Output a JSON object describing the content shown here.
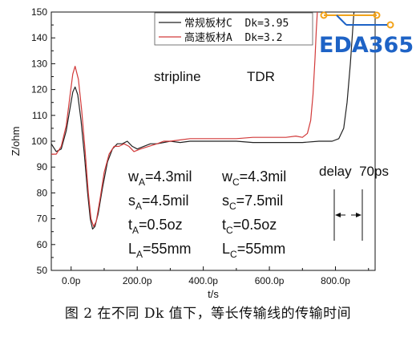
{
  "chart_data": {
    "type": "line",
    "title": "",
    "xlabel": "t/s",
    "ylabel": "Z/ohm",
    "xlim": [
      -60,
      920
    ],
    "ylim": [
      50,
      150
    ],
    "x_ticks": [
      0,
      200,
      400,
      600,
      800
    ],
    "x_tick_labels": [
      "0.0p",
      "200.0p",
      "400.0p",
      "600.0p",
      "800.0p"
    ],
    "y_ticks": [
      50,
      60,
      70,
      80,
      90,
      100,
      110,
      120,
      130,
      140,
      150
    ],
    "y_tick_labels": [
      "50",
      "60",
      "70",
      "80",
      "90",
      "100",
      "110",
      "120",
      "130",
      "140",
      "150"
    ],
    "legend_position": "top-right",
    "grid": false,
    "series": [
      {
        "name": "常规板材C  Dk=3.95",
        "color": "#222222",
        "points": [
          [
            -60,
            99
          ],
          [
            -45,
            96
          ],
          [
            -30,
            97
          ],
          [
            -15,
            104
          ],
          [
            -3,
            113
          ],
          [
            5,
            119
          ],
          [
            12,
            121
          ],
          [
            20,
            118
          ],
          [
            30,
            108
          ],
          [
            40,
            95
          ],
          [
            50,
            80
          ],
          [
            58,
            70
          ],
          [
            65,
            66
          ],
          [
            72,
            67
          ],
          [
            82,
            72
          ],
          [
            95,
            82
          ],
          [
            110,
            92
          ],
          [
            125,
            97
          ],
          [
            140,
            99
          ],
          [
            155,
            99
          ],
          [
            170,
            100
          ],
          [
            185,
            98
          ],
          [
            200,
            97
          ],
          [
            220,
            98
          ],
          [
            240,
            99
          ],
          [
            260,
            99
          ],
          [
            280,
            99.5
          ],
          [
            300,
            100
          ],
          [
            330,
            99.5
          ],
          [
            360,
            100
          ],
          [
            400,
            100
          ],
          [
            450,
            100
          ],
          [
            500,
            100
          ],
          [
            550,
            99.5
          ],
          [
            600,
            99.5
          ],
          [
            650,
            99.5
          ],
          [
            700,
            99.5
          ],
          [
            750,
            100
          ],
          [
            790,
            100
          ],
          [
            810,
            101
          ],
          [
            825,
            105
          ],
          [
            835,
            115
          ],
          [
            845,
            130
          ],
          [
            852,
            143
          ],
          [
            856,
            150
          ]
        ]
      },
      {
        "name": "高速板材A  Dk=3.2",
        "color": "#d23a3a",
        "points": [
          [
            -60,
            95
          ],
          [
            -45,
            95
          ],
          [
            -30,
            98
          ],
          [
            -15,
            106
          ],
          [
            -3,
            118
          ],
          [
            5,
            126
          ],
          [
            12,
            129
          ],
          [
            22,
            124
          ],
          [
            32,
            112
          ],
          [
            42,
            97
          ],
          [
            52,
            80
          ],
          [
            60,
            70
          ],
          [
            68,
            67
          ],
          [
            76,
            69
          ],
          [
            88,
            78
          ],
          [
            100,
            88
          ],
          [
            115,
            95
          ],
          [
            130,
            98
          ],
          [
            145,
            98
          ],
          [
            160,
            99
          ],
          [
            175,
            98
          ],
          [
            190,
            96
          ],
          [
            210,
            97
          ],
          [
            235,
            98
          ],
          [
            260,
            99
          ],
          [
            280,
            100
          ],
          [
            300,
            100
          ],
          [
            330,
            100.5
          ],
          [
            360,
            101
          ],
          [
            400,
            101
          ],
          [
            450,
            101
          ],
          [
            500,
            101
          ],
          [
            550,
            101.5
          ],
          [
            600,
            101.5
          ],
          [
            650,
            101.5
          ],
          [
            680,
            102
          ],
          [
            700,
            101.5
          ],
          [
            715,
            103
          ],
          [
            725,
            108
          ],
          [
            732,
            118
          ],
          [
            738,
            132
          ],
          [
            742,
            143
          ],
          [
            745,
            150
          ]
        ]
      }
    ]
  },
  "annotations": {
    "stripline": "stripline",
    "tdr": "TDR",
    "delay": "delay  70ps"
  },
  "params_a": [
    {
      "base": "w",
      "sub": "A",
      "value": "=4.3mil"
    },
    {
      "base": "s",
      "sub": "A",
      "value": "=4.5mil"
    },
    {
      "base": "t",
      "sub": "A",
      "value": "=0.5oz"
    },
    {
      "base": "L",
      "sub": "A",
      "value": "=55mm"
    }
  ],
  "params_c": [
    {
      "base": "w",
      "sub": "C",
      "value": "=4.3mil"
    },
    {
      "base": "s",
      "sub": "C",
      "value": "=7.5mil"
    },
    {
      "base": "t",
      "sub": "C",
      "value": "=0.5oz"
    },
    {
      "base": "L",
      "sub": "C",
      "value": "=55mm"
    }
  ],
  "logo": {
    "text": "EDA365",
    "color": "#1e63c6",
    "accent": "#f2a31b"
  },
  "caption": "图 2 在不同 Dk 值下，等长传输线的传输时间"
}
